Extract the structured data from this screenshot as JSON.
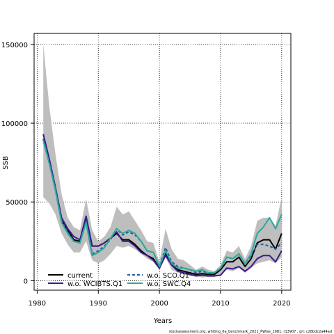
{
  "chart_data": {
    "type": "line",
    "xlabel": "Years",
    "ylabel": "SSB",
    "xlim": [
      1979.5,
      2021.5
    ],
    "ylim": [
      -6000,
      157000
    ],
    "x_ticks": [
      1980,
      1990,
      2000,
      2010,
      2020
    ],
    "y_ticks": [
      0,
      50000,
      100000,
      150000
    ],
    "y_tick_labels": [
      "0",
      "50000",
      "100000",
      "150000"
    ],
    "grid": true,
    "legend_position": "bottom-left",
    "footnote": "stockassessment.org, whiting_6a_benchmark_2021_PWise_1981, r13907 , git: c28bdc2a44ad",
    "x": [
      1981,
      1982,
      1983,
      1984,
      1985,
      1986,
      1987,
      1988,
      1989,
      1990,
      1991,
      1992,
      1993,
      1994,
      1995,
      1996,
      1997,
      1998,
      1999,
      2000,
      2001,
      2002,
      2003,
      2004,
      2005,
      2006,
      2007,
      2008,
      2009,
      2010,
      2011,
      2012,
      2013,
      2014,
      2015,
      2016,
      2017,
      2018,
      2019,
      2020
    ],
    "band": {
      "lower": [
        53000,
        49000,
        42000,
        30000,
        23000,
        18000,
        18000,
        25000,
        13000,
        11000,
        13000,
        17000,
        22000,
        21000,
        22000,
        20000,
        17000,
        14000,
        12000,
        7000,
        15000,
        7000,
        5000,
        4000,
        3000,
        3000,
        2000,
        2500,
        2500,
        4000,
        7000,
        6000,
        8000,
        5000,
        8000,
        11000,
        12000,
        13000,
        11000,
        15000
      ],
      "upper": [
        150000,
        110000,
        80000,
        55000,
        40000,
        34000,
        32000,
        52000,
        32000,
        25000,
        28000,
        34000,
        47000,
        42000,
        44000,
        38000,
        32000,
        25000,
        24000,
        12000,
        33000,
        20000,
        14000,
        13000,
        10000,
        7000,
        9000,
        7000,
        6000,
        10000,
        19000,
        18000,
        22000,
        14000,
        22000,
        38000,
        40000,
        40000,
        35000,
        53000
      ]
    },
    "series": [
      {
        "name": "current",
        "color": "#000000",
        "dash": "solid",
        "values": [
          90000,
          75000,
          58000,
          38000,
          32000,
          26000,
          25000,
          40000,
          22000,
          22000,
          24000,
          27000,
          30000,
          26000,
          26000,
          23000,
          19000,
          16000,
          14000,
          8000,
          17000,
          10000,
          7000,
          6000,
          5000,
          4000,
          4500,
          4000,
          4000,
          7000,
          12000,
          12000,
          15000,
          9000,
          14000,
          24000,
          26000,
          26000,
          20000,
          30000
        ]
      },
      {
        "name": "w.o. WCIBTS.Q1",
        "color": "#3b1a8c",
        "dash": "solid",
        "values": [
          93000,
          77000,
          59000,
          40000,
          33000,
          28000,
          26000,
          41000,
          22000,
          22000,
          24000,
          27000,
          31000,
          25000,
          25000,
          22000,
          18000,
          16000,
          13000,
          8000,
          16000,
          10000,
          6000,
          5000,
          4000,
          3000,
          3500,
          3000,
          3000,
          3500,
          8000,
          7500,
          9000,
          6000,
          9000,
          14000,
          16000,
          16000,
          12000,
          19000
        ]
      },
      {
        "name": "w.o. SCO.Q1",
        "color": "#2c5aa0",
        "dash": "dashed",
        "values": [
          90000,
          75000,
          58000,
          38000,
          31000,
          25000,
          24000,
          38000,
          17000,
          19000,
          22000,
          26000,
          33000,
          29000,
          31000,
          29000,
          25000,
          19000,
          18000,
          9000,
          21000,
          12000,
          9000,
          8000,
          7000,
          5000,
          6000,
          5000,
          5000,
          8000,
          15000,
          14000,
          17000,
          11000,
          16000,
          23000,
          23000,
          22000,
          20000,
          24000
        ]
      },
      {
        "name": "w.o. SWC.Q4",
        "color": "#2aaa9a",
        "dash": "solid",
        "values": [
          89000,
          74000,
          57000,
          37000,
          30000,
          25000,
          24000,
          37000,
          16000,
          18000,
          21000,
          27000,
          33000,
          30000,
          32000,
          30000,
          25000,
          19000,
          18000,
          9000,
          19000,
          11000,
          8000,
          8000,
          7000,
          6000,
          7000,
          5000,
          5000,
          8000,
          15000,
          14000,
          17000,
          11000,
          17000,
          30000,
          34000,
          40000,
          33000,
          42000
        ]
      }
    ]
  }
}
